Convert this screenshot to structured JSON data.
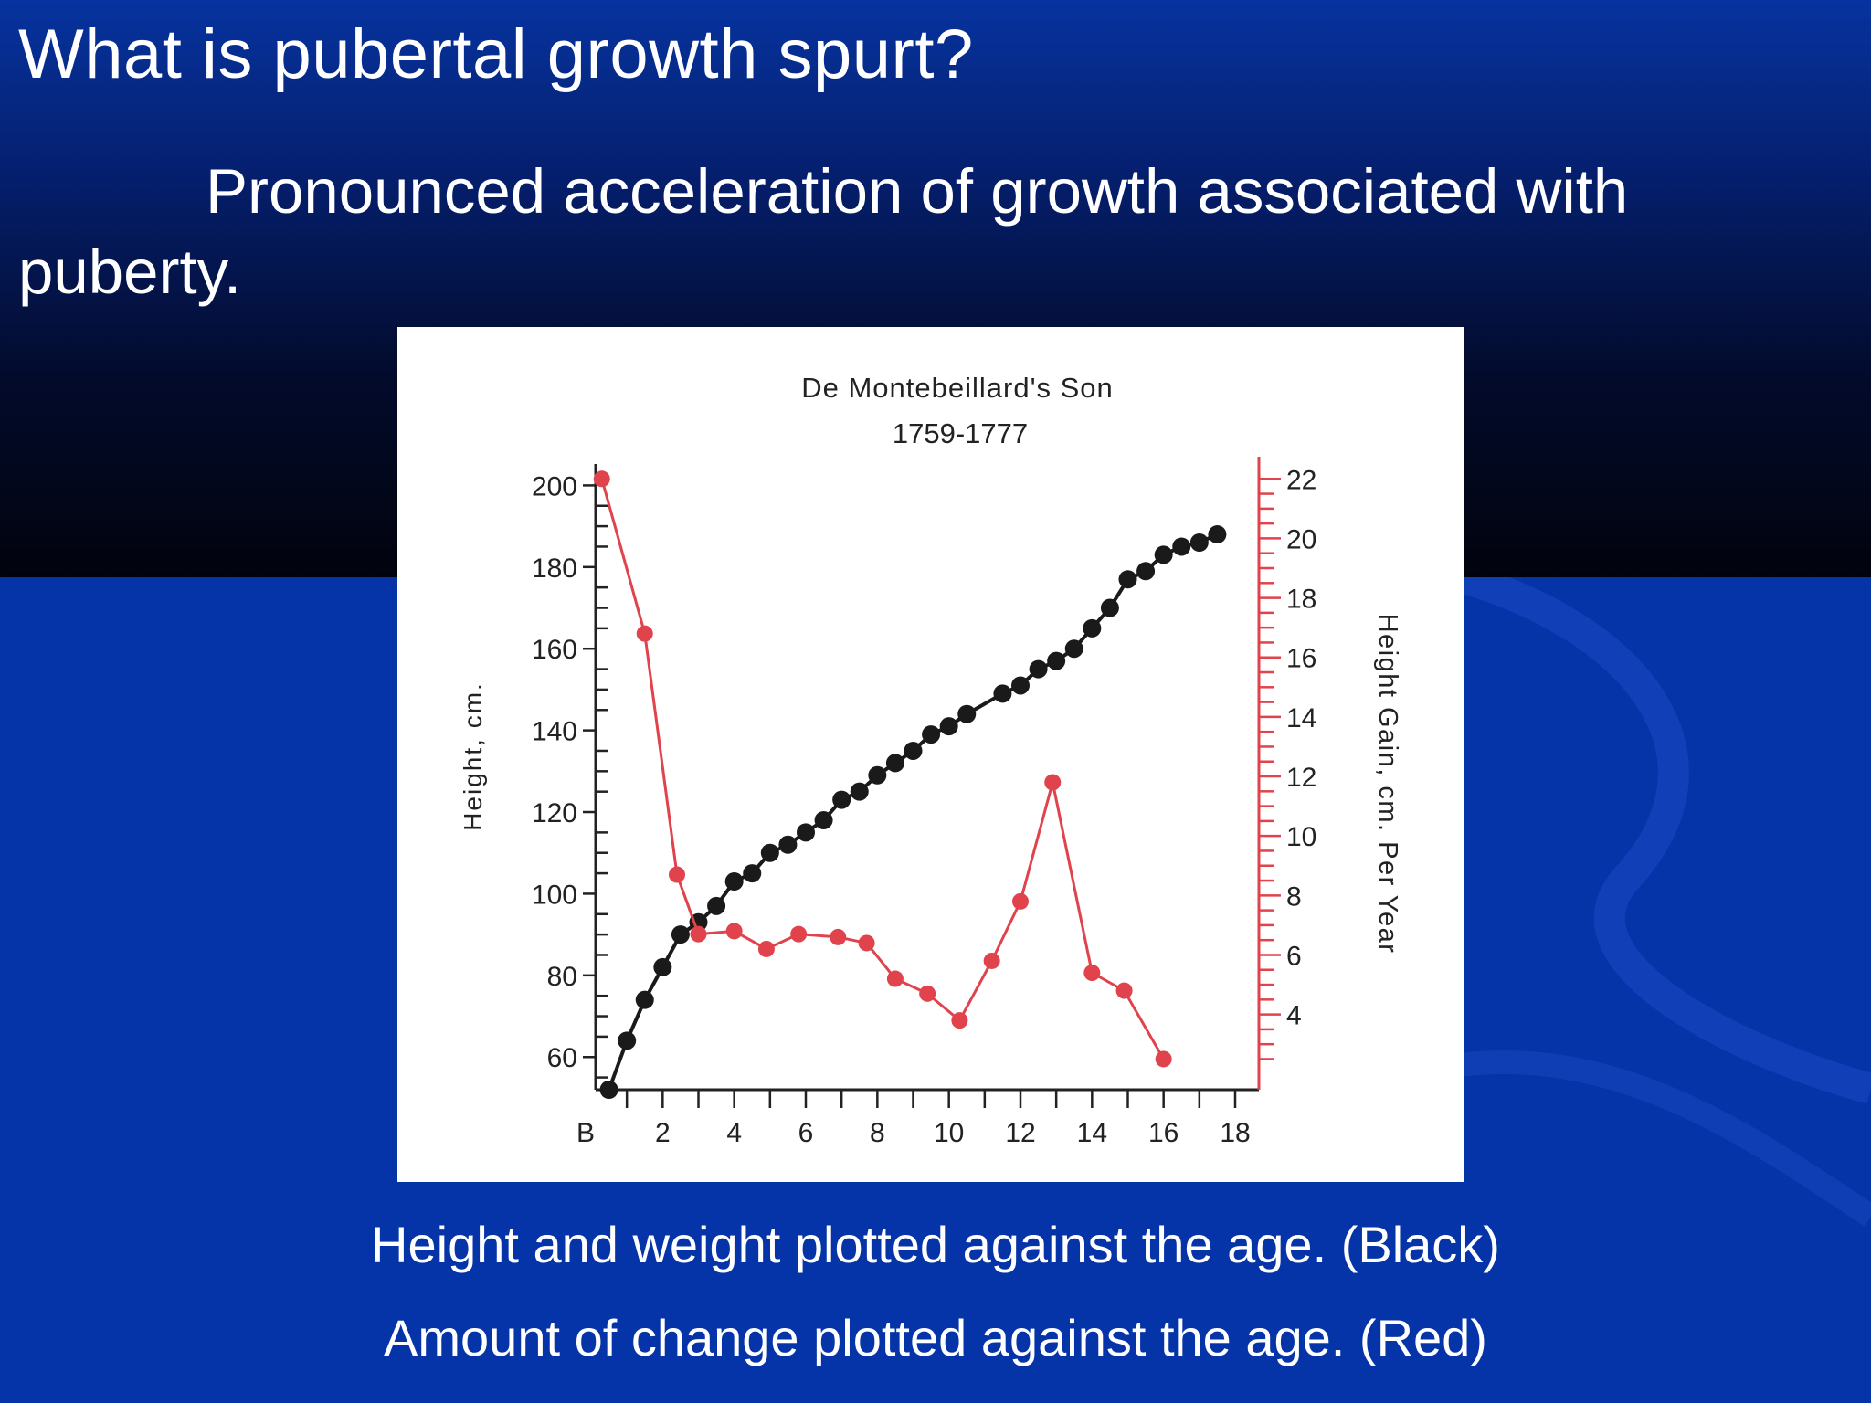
{
  "slide": {
    "title": "What is pubertal growth spurt?",
    "body": "Pronounced acceleration of growth associated with puberty.",
    "caption_black": "Height and weight plotted against the age. (Black)",
    "caption_red": "Amount of change plotted against the age. (Red)"
  },
  "colors": {
    "background": "#0533a8",
    "height_series": "#1a1a1a",
    "gain_series": "#e0434c"
  },
  "chart_data": {
    "type": "line",
    "title": "De Montebeillard's Son",
    "subtitle": "1759-1777",
    "xlabel": "",
    "ylabel": "Height, cm.",
    "y2label": "Height Gain, cm. Per Year",
    "x_ticks": [
      "B",
      "2",
      "4",
      "6",
      "8",
      "10",
      "12",
      "14",
      "16",
      "18"
    ],
    "y_ticks": [
      "60",
      "80",
      "100",
      "120",
      "140",
      "160",
      "180",
      "200"
    ],
    "y2_ticks": [
      "4",
      "6",
      "8",
      "10",
      "12",
      "14",
      "16",
      "18",
      "20",
      "22"
    ],
    "xlim": [
      0,
      18
    ],
    "ylim": [
      52,
      203
    ],
    "y2lim": [
      2.3,
      22.5
    ],
    "grid": false,
    "series": [
      {
        "axis": "left",
        "points": [
          [
            0.5,
            52
          ],
          [
            1.0,
            64
          ],
          [
            1.5,
            74
          ],
          [
            2.0,
            82
          ],
          [
            2.5,
            90
          ],
          [
            3.0,
            93
          ],
          [
            3.5,
            97
          ],
          [
            4.0,
            103
          ],
          [
            4.5,
            105
          ],
          [
            5.0,
            110
          ],
          [
            5.5,
            112
          ],
          [
            6.0,
            115
          ],
          [
            6.5,
            118
          ],
          [
            7.0,
            123
          ],
          [
            7.5,
            125
          ],
          [
            8.0,
            129
          ],
          [
            8.5,
            132
          ],
          [
            9.0,
            135
          ],
          [
            9.5,
            139
          ],
          [
            10.0,
            141
          ],
          [
            10.5,
            144
          ],
          [
            11.5,
            149
          ],
          [
            12.0,
            151
          ],
          [
            12.5,
            155
          ],
          [
            13.0,
            157
          ],
          [
            13.5,
            160
          ],
          [
            14.0,
            165
          ],
          [
            14.5,
            170
          ],
          [
            15.0,
            177
          ],
          [
            15.5,
            179
          ],
          [
            16.0,
            183
          ],
          [
            16.5,
            185
          ],
          [
            17.0,
            186
          ],
          [
            17.5,
            188
          ]
        ]
      },
      {
        "axis": "right",
        "points": [
          [
            0.3,
            22.0
          ],
          [
            1.5,
            16.8
          ],
          [
            2.4,
            8.7
          ],
          [
            3.0,
            6.7
          ],
          [
            4.0,
            6.8
          ],
          [
            4.9,
            6.2
          ],
          [
            5.8,
            6.7
          ],
          [
            6.9,
            6.6
          ],
          [
            7.7,
            6.4
          ],
          [
            8.5,
            5.2
          ],
          [
            9.4,
            4.7
          ],
          [
            10.3,
            3.8
          ],
          [
            11.2,
            5.8
          ],
          [
            12.0,
            7.8
          ],
          [
            12.9,
            11.8
          ],
          [
            14.0,
            5.4
          ],
          [
            14.9,
            4.8
          ],
          [
            16.0,
            2.5
          ]
        ]
      }
    ]
  }
}
